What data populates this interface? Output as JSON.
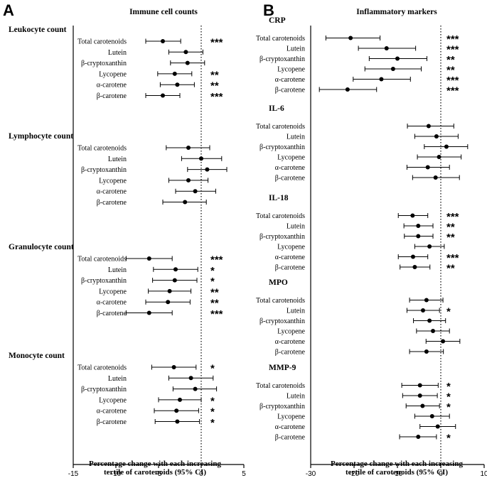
{
  "chart_data": [
    {
      "type": "forest",
      "panel_letter": "A",
      "title": "Immune cell counts",
      "xlabel_line1": "Percentage change with each increasing",
      "xlabel_line2": "tertile of carotenoids (95% CI)",
      "xlim": [
        -15,
        5
      ],
      "xticks": [
        -15,
        -10,
        -5,
        0,
        5
      ],
      "reference_line": 0,
      "groups": [
        {
          "name": "Leukocyte count",
          "rows": [
            {
              "label": "Total carotenoids",
              "est": -4.5,
              "lo": -6.5,
              "hi": -2.4,
              "sig": "***"
            },
            {
              "label": "Lutein",
              "est": -1.8,
              "lo": -3.8,
              "hi": 0.2,
              "sig": ""
            },
            {
              "label": "β-cryptoxanthin",
              "est": -1.6,
              "lo": -3.6,
              "hi": 0.4,
              "sig": ""
            },
            {
              "label": "Lycopene",
              "est": -3.1,
              "lo": -5.1,
              "hi": -1.1,
              "sig": "**"
            },
            {
              "label": "α-carotene",
              "est": -2.8,
              "lo": -4.8,
              "hi": -0.8,
              "sig": "**"
            },
            {
              "label": "β-carotene",
              "est": -4.5,
              "lo": -6.5,
              "hi": -2.5,
              "sig": "***"
            }
          ]
        },
        {
          "name": "Lymphocyte count",
          "rows": [
            {
              "label": "Total carotenoids",
              "est": -1.5,
              "lo": -4.1,
              "hi": 1.0,
              "sig": ""
            },
            {
              "label": "Lutein",
              "est": 0.0,
              "lo": -2.3,
              "hi": 2.4,
              "sig": ""
            },
            {
              "label": "β-cryptoxanthin",
              "est": 0.7,
              "lo": -1.6,
              "hi": 3.0,
              "sig": ""
            },
            {
              "label": "Lycopene",
              "est": -1.5,
              "lo": -3.8,
              "hi": 0.8,
              "sig": ""
            },
            {
              "label": "α-carotene",
              "est": -0.7,
              "lo": -3.0,
              "hi": 1.7,
              "sig": ""
            },
            {
              "label": "β-carotene",
              "est": -1.9,
              "lo": -4.5,
              "hi": 0.6,
              "sig": ""
            }
          ]
        },
        {
          "name": "Granulocyte count",
          "rows": [
            {
              "label": "Total carotenoids",
              "est": -6.1,
              "lo": -8.8,
              "hi": -3.4,
              "sig": "***"
            },
            {
              "label": "Lutein",
              "est": -3.0,
              "lo": -5.6,
              "hi": -0.4,
              "sig": "*"
            },
            {
              "label": "β-cryptoxanthin",
              "est": -3.1,
              "lo": -5.7,
              "hi": -0.5,
              "sig": "*"
            },
            {
              "label": "Lycopene",
              "est": -3.7,
              "lo": -6.2,
              "hi": -1.2,
              "sig": "**"
            },
            {
              "label": "α-carotene",
              "est": -3.9,
              "lo": -6.5,
              "hi": -1.3,
              "sig": "**"
            },
            {
              "label": "β-carotene",
              "est": -6.1,
              "lo": -8.8,
              "hi": -3.4,
              "sig": "***"
            }
          ]
        },
        {
          "name": "Monocyte count",
          "rows": [
            {
              "label": "Total carotenoids",
              "est": -3.2,
              "lo": -5.8,
              "hi": -0.6,
              "sig": "*"
            },
            {
              "label": "Lutein",
              "est": -1.2,
              "lo": -3.8,
              "hi": 1.4,
              "sig": ""
            },
            {
              "label": "β-cryptoxanthin",
              "est": -0.7,
              "lo": -3.3,
              "hi": 1.8,
              "sig": ""
            },
            {
              "label": "Lycopene",
              "est": -2.5,
              "lo": -5.0,
              "hi": 0.0,
              "sig": "*"
            },
            {
              "label": "α-carotene",
              "est": -2.9,
              "lo": -5.5,
              "hi": -0.3,
              "sig": "*"
            },
            {
              "label": "β-carotene",
              "est": -2.8,
              "lo": -5.4,
              "hi": -0.2,
              "sig": "*"
            }
          ]
        }
      ]
    },
    {
      "type": "forest",
      "panel_letter": "B",
      "title": "Inflammatory markers",
      "xlabel_line1": "Percentage change with each increasing",
      "xlabel_line2": "tertile of carotenoids (95% CI)",
      "xlim": [
        -30,
        10
      ],
      "xticks": [
        -30,
        -20,
        -10,
        0,
        10
      ],
      "reference_line": 0,
      "groups": [
        {
          "name": "CRP",
          "rows": [
            {
              "label": "Total carotenoids",
              "est": -20.8,
              "lo": -26.5,
              "hi": -14.0,
              "sig": "***"
            },
            {
              "label": "Lutein",
              "est": -12.5,
              "lo": -19.0,
              "hi": -5.8,
              "sig": "***"
            },
            {
              "label": "β-cryptoxanthin",
              "est": -10.0,
              "lo": -16.5,
              "hi": -3.2,
              "sig": "**"
            },
            {
              "label": "Lycopene",
              "est": -11.0,
              "lo": -17.5,
              "hi": -4.5,
              "sig": "**"
            },
            {
              "label": "α-carotene",
              "est": -13.7,
              "lo": -20.2,
              "hi": -7.0,
              "sig": "***"
            },
            {
              "label": "β-carotene",
              "est": -21.5,
              "lo": -28.0,
              "hi": -14.8,
              "sig": "***"
            }
          ]
        },
        {
          "name": "IL-6",
          "rows": [
            {
              "label": "Total carotenoids",
              "est": -2.8,
              "lo": -7.7,
              "hi": 3.0,
              "sig": ""
            },
            {
              "label": "Lutein",
              "est": -1.0,
              "lo": -6.0,
              "hi": 4.0,
              "sig": ""
            },
            {
              "label": "β-cryptoxanthin",
              "est": 1.3,
              "lo": -3.8,
              "hi": 6.2,
              "sig": ""
            },
            {
              "label": "Lycopene",
              "est": -0.4,
              "lo": -5.4,
              "hi": 4.7,
              "sig": ""
            },
            {
              "label": "α-carotene",
              "est": -3.0,
              "lo": -7.8,
              "hi": 2.0,
              "sig": ""
            },
            {
              "label": "β-carotene",
              "est": -1.2,
              "lo": -6.5,
              "hi": 4.3,
              "sig": ""
            }
          ]
        },
        {
          "name": "IL-18",
          "rows": [
            {
              "label": "Total carotenoids",
              "est": -6.5,
              "lo": -9.8,
              "hi": -3.0,
              "sig": "***"
            },
            {
              "label": "Lutein",
              "est": -5.2,
              "lo": -8.5,
              "hi": -1.8,
              "sig": "**"
            },
            {
              "label": "β-cryptoxanthin",
              "est": -5.2,
              "lo": -8.4,
              "hi": -1.8,
              "sig": "**"
            },
            {
              "label": "Lycopene",
              "est": -2.6,
              "lo": -6.0,
              "hi": 0.8,
              "sig": ""
            },
            {
              "label": "α-carotene",
              "est": -6.4,
              "lo": -9.8,
              "hi": -3.0,
              "sig": "***"
            },
            {
              "label": "β-carotene",
              "est": -6.0,
              "lo": -9.4,
              "hi": -2.5,
              "sig": "**"
            }
          ]
        },
        {
          "name": "MPO",
          "rows": [
            {
              "label": "Total carotenoids",
              "est": -3.3,
              "lo": -7.2,
              "hi": 0.5,
              "sig": ""
            },
            {
              "label": "Lutein",
              "est": -4.1,
              "lo": -7.8,
              "hi": -0.3,
              "sig": "*"
            },
            {
              "label": "β-cryptoxanthin",
              "est": -2.6,
              "lo": -6.3,
              "hi": 1.1,
              "sig": ""
            },
            {
              "label": "Lycopene",
              "est": -1.8,
              "lo": -5.6,
              "hi": 2.0,
              "sig": ""
            },
            {
              "label": "α-carotene",
              "est": 0.5,
              "lo": -3.4,
              "hi": 4.4,
              "sig": ""
            },
            {
              "label": "β-carotene",
              "est": -3.3,
              "lo": -7.2,
              "hi": 0.6,
              "sig": ""
            }
          ]
        },
        {
          "name": "MMP-9",
          "rows": [
            {
              "label": "Total carotenoids",
              "est": -4.8,
              "lo": -9.0,
              "hi": -0.6,
              "sig": "*"
            },
            {
              "label": "Lutein",
              "est": -4.8,
              "lo": -8.8,
              "hi": -0.8,
              "sig": "*"
            },
            {
              "label": "β-cryptoxanthin",
              "est": -4.2,
              "lo": -8.0,
              "hi": -0.3,
              "sig": "*"
            },
            {
              "label": "Lycopene",
              "est": -2.0,
              "lo": -6.0,
              "hi": 2.0,
              "sig": ""
            },
            {
              "label": "α-carotene",
              "est": -0.7,
              "lo": -4.8,
              "hi": 3.4,
              "sig": ""
            },
            {
              "label": "β-carotene",
              "est": -5.2,
              "lo": -9.5,
              "hi": -1.0,
              "sig": "*"
            }
          ]
        }
      ]
    }
  ]
}
